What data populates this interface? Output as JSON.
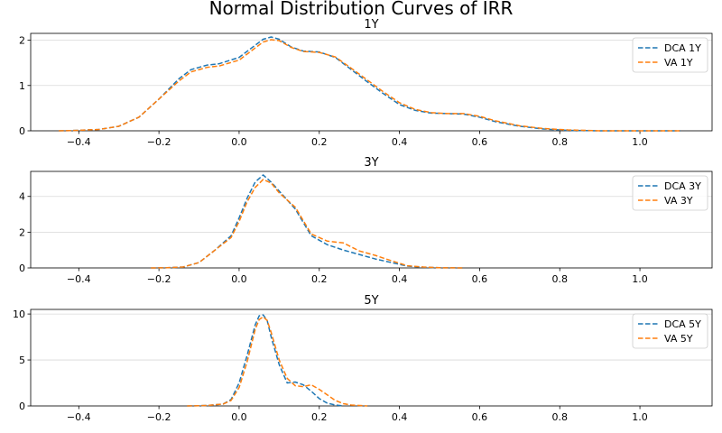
{
  "figure": {
    "title": "Normal Distribution Curves of IRR"
  },
  "chart_data": [
    {
      "type": "line",
      "title": "1Y",
      "xlabel": "",
      "ylabel": "",
      "xlim": [
        -0.52,
        1.18
      ],
      "ylim": [
        0,
        2.15
      ],
      "xticks": [
        -0.4,
        -0.2,
        0.0,
        0.2,
        0.4,
        0.6,
        0.8,
        1.0
      ],
      "xtick_labels": [
        "−0.4",
        "−0.2",
        "0.0",
        "0.2",
        "0.4",
        "0.6",
        "0.8",
        "1.0"
      ],
      "yticks": [
        0,
        1,
        2
      ],
      "ytick_labels": [
        "0",
        "1",
        "2"
      ],
      "grid": "y",
      "legend_position": "top-right",
      "series": [
        {
          "name": "DCA 1Y",
          "color": "#1f77b4",
          "style": "dashed",
          "x": [
            -0.45,
            -0.4,
            -0.35,
            -0.3,
            -0.25,
            -0.2,
            -0.15,
            -0.12,
            -0.08,
            -0.05,
            0.0,
            0.03,
            0.06,
            0.08,
            0.1,
            0.13,
            0.16,
            0.2,
            0.24,
            0.28,
            0.32,
            0.36,
            0.4,
            0.44,
            0.48,
            0.52,
            0.56,
            0.6,
            0.64,
            0.7,
            0.76,
            0.82,
            0.9,
            1.0,
            1.1
          ],
          "y": [
            0.0,
            0.01,
            0.03,
            0.1,
            0.3,
            0.7,
            1.15,
            1.35,
            1.45,
            1.48,
            1.62,
            1.82,
            2.02,
            2.07,
            2.02,
            1.85,
            1.76,
            1.74,
            1.62,
            1.35,
            1.08,
            0.82,
            0.58,
            0.45,
            0.39,
            0.38,
            0.37,
            0.3,
            0.2,
            0.1,
            0.04,
            0.01,
            0.0,
            0.0,
            0.0
          ]
        },
        {
          "name": "VA 1Y",
          "color": "#ff7f0e",
          "style": "dashed",
          "x": [
            -0.45,
            -0.4,
            -0.35,
            -0.3,
            -0.25,
            -0.2,
            -0.15,
            -0.12,
            -0.08,
            -0.05,
            0.0,
            0.03,
            0.06,
            0.08,
            0.1,
            0.13,
            0.16,
            0.2,
            0.24,
            0.28,
            0.32,
            0.36,
            0.4,
            0.44,
            0.48,
            0.52,
            0.56,
            0.6,
            0.64,
            0.7,
            0.76,
            0.82,
            0.9,
            1.0,
            1.1
          ],
          "y": [
            0.0,
            0.01,
            0.03,
            0.1,
            0.3,
            0.7,
            1.1,
            1.3,
            1.4,
            1.43,
            1.56,
            1.76,
            1.96,
            2.01,
            1.99,
            1.84,
            1.75,
            1.73,
            1.63,
            1.38,
            1.12,
            0.86,
            0.62,
            0.47,
            0.4,
            0.38,
            0.38,
            0.32,
            0.22,
            0.11,
            0.05,
            0.02,
            0.0,
            0.0,
            0.0
          ]
        }
      ]
    },
    {
      "type": "line",
      "title": "3Y",
      "xlabel": "",
      "ylabel": "",
      "xlim": [
        -0.52,
        1.18
      ],
      "ylim": [
        0,
        5.4
      ],
      "xticks": [
        -0.4,
        -0.2,
        0.0,
        0.2,
        0.4,
        0.6,
        0.8,
        1.0
      ],
      "xtick_labels": [
        "−0.4",
        "−0.2",
        "0.0",
        "0.2",
        "0.4",
        "0.6",
        "0.8",
        "1.0"
      ],
      "yticks": [
        0,
        2,
        4
      ],
      "ytick_labels": [
        "0",
        "2",
        "4"
      ],
      "grid": "y",
      "legend_position": "top-right",
      "series": [
        {
          "name": "DCA 3Y",
          "color": "#1f77b4",
          "style": "dashed",
          "x": [
            -0.22,
            -0.18,
            -0.14,
            -0.1,
            -0.06,
            -0.02,
            0.0,
            0.02,
            0.04,
            0.06,
            0.08,
            0.1,
            0.14,
            0.18,
            0.22,
            0.26,
            0.3,
            0.34,
            0.38,
            0.42,
            0.46,
            0.5,
            0.56
          ],
          "y": [
            0.0,
            0.01,
            0.05,
            0.3,
            1.0,
            1.8,
            2.8,
            3.9,
            4.8,
            5.2,
            4.8,
            4.3,
            3.3,
            1.8,
            1.3,
            1.0,
            0.75,
            0.5,
            0.3,
            0.1,
            0.04,
            0.01,
            0.0
          ]
        },
        {
          "name": "VA 3Y",
          "color": "#ff7f0e",
          "style": "dashed",
          "x": [
            -0.22,
            -0.18,
            -0.14,
            -0.1,
            -0.06,
            -0.02,
            0.0,
            0.02,
            0.04,
            0.06,
            0.08,
            0.1,
            0.14,
            0.18,
            0.22,
            0.26,
            0.3,
            0.34,
            0.38,
            0.42,
            0.46,
            0.5,
            0.56
          ],
          "y": [
            0.0,
            0.01,
            0.05,
            0.3,
            1.0,
            1.7,
            2.6,
            3.7,
            4.5,
            4.95,
            4.75,
            4.2,
            3.4,
            1.9,
            1.5,
            1.4,
            0.95,
            0.7,
            0.4,
            0.12,
            0.05,
            0.01,
            0.0
          ]
        }
      ]
    },
    {
      "type": "line",
      "title": "5Y",
      "xlabel": "",
      "ylabel": "",
      "xlim": [
        -0.52,
        1.18
      ],
      "ylim": [
        0,
        10.5
      ],
      "xticks": [
        -0.4,
        -0.2,
        0.0,
        0.2,
        0.4,
        0.6,
        0.8,
        1.0
      ],
      "xtick_labels": [
        "−0.4",
        "−0.2",
        "0.0",
        "0.2",
        "0.4",
        "0.6",
        "0.8",
        "1.0"
      ],
      "yticks": [
        0,
        5,
        10
      ],
      "ytick_labels": [
        "0",
        "5",
        "10"
      ],
      "grid": "y",
      "legend_position": "top-right",
      "series": [
        {
          "name": "DCA 5Y",
          "color": "#1f77b4",
          "style": "dashed",
          "x": [
            -0.13,
            -0.08,
            -0.04,
            -0.02,
            0.0,
            0.02,
            0.04,
            0.05,
            0.06,
            0.07,
            0.08,
            0.1,
            0.12,
            0.14,
            0.16,
            0.18,
            0.2,
            0.22,
            0.24,
            0.26
          ],
          "y": [
            0.0,
            0.05,
            0.2,
            0.7,
            2.5,
            5.5,
            8.8,
            9.8,
            9.9,
            9.3,
            7.5,
            4.5,
            2.5,
            2.6,
            2.3,
            1.6,
            0.8,
            0.3,
            0.1,
            0.0
          ]
        },
        {
          "name": "VA 5Y",
          "color": "#ff7f0e",
          "style": "dashed",
          "x": [
            -0.13,
            -0.08,
            -0.04,
            -0.02,
            0.0,
            0.02,
            0.04,
            0.05,
            0.06,
            0.07,
            0.08,
            0.1,
            0.12,
            0.14,
            0.16,
            0.18,
            0.2,
            0.22,
            0.24,
            0.26,
            0.28,
            0.32
          ],
          "y": [
            0.0,
            0.05,
            0.2,
            0.6,
            2.0,
            4.8,
            8.3,
            9.4,
            9.7,
            9.3,
            8.0,
            5.0,
            3.0,
            2.2,
            2.1,
            2.3,
            1.8,
            1.2,
            0.6,
            0.25,
            0.1,
            0.0
          ]
        }
      ]
    }
  ]
}
